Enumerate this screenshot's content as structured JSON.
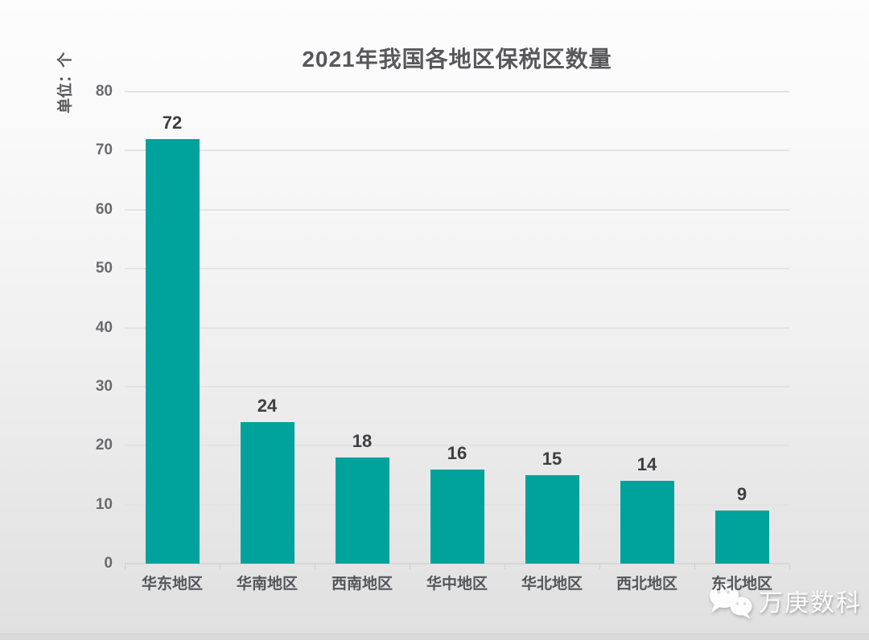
{
  "title": "2021年我国各地区保税区数量",
  "y_axis_unit": "单位：个",
  "watermark": {
    "brand": "万庚数科",
    "icon": "wechat-icon"
  },
  "colors": {
    "bar": "#00A29C",
    "title_text": "#58585B",
    "tick_text": "#6B6B6D",
    "value_text": "#3E3E40",
    "category_text": "#55565A",
    "gridline": "#E3E3E3",
    "axis_line": "#D6D6D6",
    "watermark_text": "#FCFCFC"
  },
  "chart_data": {
    "type": "bar",
    "title": "2021年我国各地区保税区数量",
    "ylabel": "单位：个",
    "xlabel": "",
    "categories": [
      "华东地区",
      "华南地区",
      "西南地区",
      "华中地区",
      "华北地区",
      "西北地区",
      "东北地区"
    ],
    "values": [
      72,
      24,
      18,
      16,
      15,
      14,
      9
    ],
    "ylim": [
      0,
      80
    ],
    "yticks": [
      0,
      10,
      20,
      30,
      40,
      50,
      60,
      70,
      80
    ],
    "grid": true,
    "legend_position": "none",
    "bar_color": "#00A29C",
    "data_labels_shown": true
  }
}
